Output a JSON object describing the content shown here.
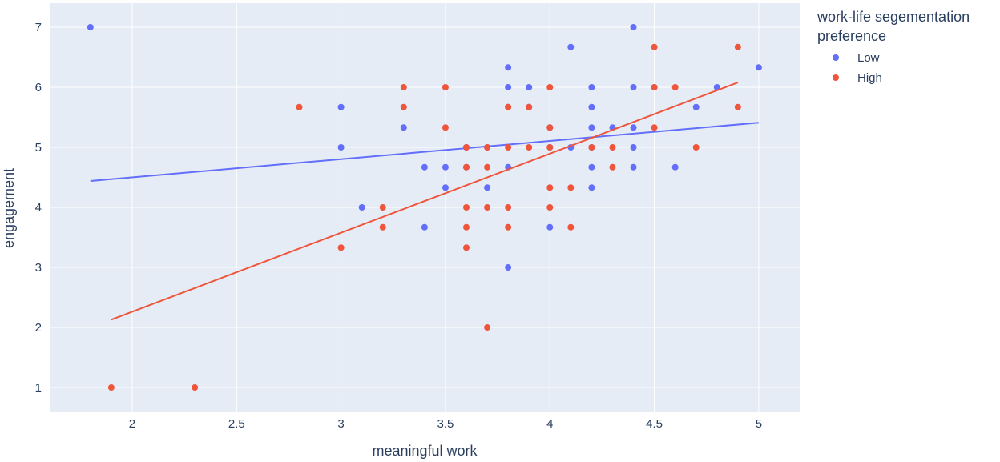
{
  "chart_data": {
    "type": "scatter",
    "x_label": "meaningful work",
    "y_label": "engagement",
    "legend_title": "work-life segementation preference",
    "xlim": [
      1.605,
      5.196
    ],
    "ylim": [
      0.587,
      7.4
    ],
    "xticks": [
      2,
      2.5,
      3,
      3.5,
      4,
      4.5,
      5
    ],
    "yticks": [
      1,
      2,
      3,
      4,
      5,
      6,
      7
    ],
    "grid": true,
    "legend_position": "right",
    "series": [
      {
        "name": "Low",
        "color": "#636efa",
        "x": [
          1.8,
          3,
          3,
          3.1,
          3.3,
          3.4,
          3.4,
          3.5,
          3.5,
          3.6,
          3.6,
          3.7,
          3.7,
          3.8,
          3.8,
          3.8,
          3.8,
          3.8,
          3.9,
          3.9,
          4,
          4,
          4,
          4.1,
          4.1,
          4.2,
          4.2,
          4.2,
          4.2,
          4.2,
          4.2,
          4.3,
          4.4,
          4.4,
          4.4,
          4.4,
          4.4,
          4.5,
          4.6,
          4.7,
          4.8,
          5
        ],
        "values": [
          7,
          5.67,
          5,
          4,
          5.33,
          4.67,
          3.67,
          4.67,
          4.33,
          5,
          4.67,
          5,
          4.33,
          6.33,
          6,
          5.67,
          4.67,
          3,
          6,
          5.67,
          5.33,
          5,
          3.67,
          6.67,
          5,
          6,
          5.67,
          5.33,
          5,
          4.67,
          4.33,
          5.33,
          7,
          6,
          5.33,
          5,
          4.67,
          6,
          4.67,
          5.67,
          6,
          6.33
        ],
        "trendline": {
          "x": [
            1.8,
            5
          ],
          "values": [
            4.44,
            5.41
          ]
        }
      },
      {
        "name": "High",
        "color": "#ef553b",
        "x": [
          1.9,
          2.3,
          2.8,
          3,
          3.2,
          3.2,
          3.3,
          3.3,
          3.5,
          3.5,
          3.6,
          3.6,
          3.6,
          3.6,
          3.6,
          3.7,
          3.7,
          3.7,
          3.7,
          3.8,
          3.8,
          3.8,
          3.8,
          3.9,
          3.9,
          4,
          4,
          4,
          4,
          4,
          4.1,
          4.1,
          4.2,
          4.3,
          4.3,
          4.5,
          4.5,
          4.5,
          4.6,
          4.7,
          4.9,
          4.9
        ],
        "values": [
          1,
          1,
          5.67,
          3.33,
          4,
          3.67,
          6,
          5.67,
          6,
          5.33,
          5,
          4.67,
          4,
          3.67,
          3.33,
          5,
          4.67,
          4,
          2,
          5.67,
          5,
          4,
          3.67,
          5.67,
          5,
          6,
          5.33,
          5,
          4.33,
          4,
          4.33,
          3.67,
          5,
          5,
          4.67,
          6.67,
          6,
          5.33,
          6,
          5,
          6.67,
          5.67
        ],
        "trendline": {
          "x": [
            1.9,
            4.9
          ],
          "values": [
            2.13,
            6.08
          ]
        }
      }
    ]
  }
}
